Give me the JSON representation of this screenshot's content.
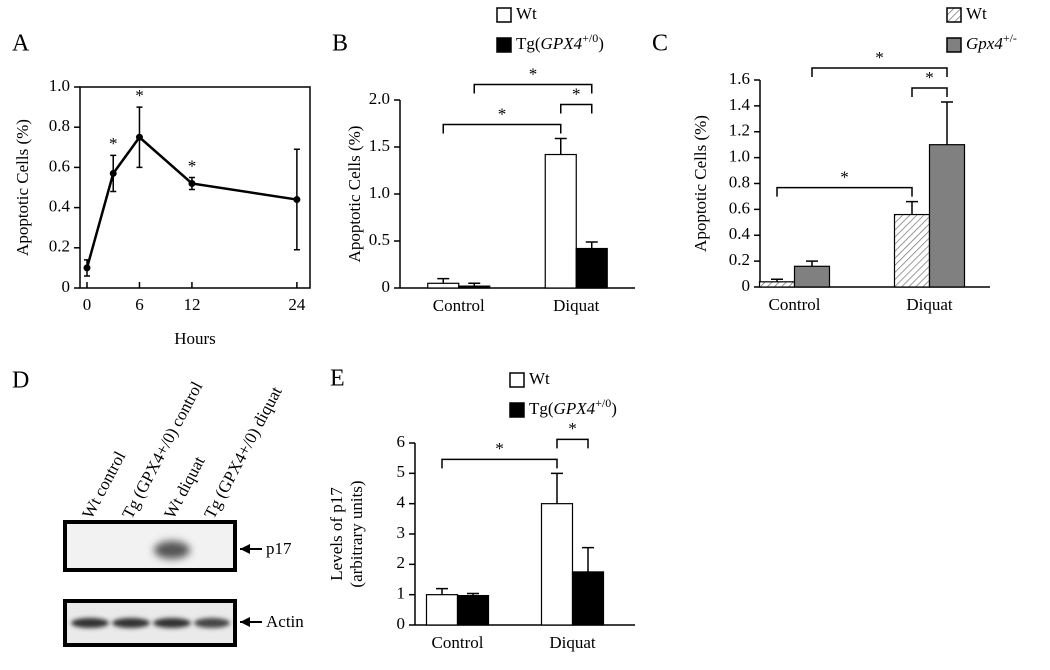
{
  "chart_data": [
    {
      "panel": "A",
      "type": "line",
      "y_label": [
        "Apoptotic Cells (%)"
      ],
      "x_label": "Hours",
      "x": [
        0,
        3,
        6,
        12,
        24
      ],
      "series": [
        {
          "color": "#000000",
          "values": [
            0.1,
            0.57,
            0.75,
            0.52,
            0.44
          ],
          "errors": [
            0.04,
            0.09,
            0.15,
            0.03,
            0.25
          ]
        }
      ],
      "annotations": [
        {
          "text": "*",
          "x": 3
        },
        {
          "text": "*",
          "x": 6
        },
        {
          "text": "*",
          "x": 12
        }
      ],
      "xlim": [
        -0.8,
        25.5
      ],
      "xticks": [
        0,
        6,
        12,
        24
      ],
      "ylim": [
        0,
        1
      ],
      "yticks": [
        0,
        0.2,
        0.4,
        0.6,
        0.8,
        {
          "value": 1,
          "label": "1.0"
        }
      ],
      "frame": "box"
    },
    {
      "panel": "B",
      "type": "bar",
      "y_label": [
        "Apoptotic Cells (%)"
      ],
      "categories": [
        "Control",
        "Diquat"
      ],
      "series": [
        {
          "name_parts": [
            {
              "text": "Wt"
            }
          ],
          "color": "#ffffff",
          "values": [
            0.05,
            1.42
          ],
          "errors": [
            0.05,
            0.17
          ]
        },
        {
          "name_parts": [
            {
              "text": "Tg("
            },
            {
              "text": "GPX4",
              "style": "italic"
            },
            {
              "text": "+/0",
              "style": "sup"
            },
            {
              "text": ")"
            }
          ],
          "color": "#000000",
          "values": [
            0.02,
            0.42
          ],
          "errors": [
            0.03,
            0.07
          ]
        }
      ],
      "significance": [
        {
          "text": "*",
          "from": [
            0,
            0
          ],
          "to": [
            0,
            1
          ]
        },
        {
          "text": "*",
          "from": [
            0,
            1
          ],
          "to": [
            1,
            1
          ]
        },
        {
          "text": "*",
          "from": [
            1,
            0
          ],
          "to": [
            1,
            1
          ]
        }
      ],
      "ylim": [
        0,
        2
      ],
      "yticks": [
        0,
        0.5,
        {
          "value": 1,
          "label": "1.0"
        },
        1.5,
        {
          "value": 2,
          "label": "2.0"
        }
      ],
      "frame": "axes"
    },
    {
      "panel": "C",
      "type": "bar",
      "y_label": [
        "Apoptotic Cells (%)"
      ],
      "categories": [
        "Control",
        "Diquat"
      ],
      "series": [
        {
          "name_parts": [
            {
              "text": "Wt"
            }
          ],
          "color": "#ffffff",
          "hatch": true,
          "values": [
            0.04,
            0.56
          ],
          "errors": [
            0.02,
            0.1
          ]
        },
        {
          "name_parts": [
            {
              "text": "Gpx4",
              "style": "italic"
            },
            {
              "text": "+/-",
              "style": "sup"
            }
          ],
          "color": "#808080",
          "values": [
            0.16,
            1.1
          ],
          "errors": [
            0.04,
            0.33
          ]
        }
      ],
      "significance": [
        {
          "text": "*",
          "from": [
            0,
            0
          ],
          "to": [
            0,
            1
          ]
        },
        {
          "text": "*",
          "from": [
            0,
            1
          ],
          "to": [
            1,
            1
          ]
        },
        {
          "text": "*",
          "from": [
            1,
            0
          ],
          "to": [
            1,
            1
          ]
        }
      ],
      "ylim": [
        0,
        1.6
      ],
      "yticks": [
        0,
        0.2,
        0.4,
        0.6,
        0.8,
        {
          "value": 1,
          "label": "1.0"
        },
        1.2,
        1.4,
        1.6
      ],
      "frame": "axes"
    },
    {
      "panel": "E",
      "type": "bar",
      "y_label": [
        "Levels of p17",
        "(arbitrary units)"
      ],
      "categories": [
        "Control",
        "Diquat"
      ],
      "series": [
        {
          "name_parts": [
            {
              "text": "Wt"
            }
          ],
          "color": "#ffffff",
          "values": [
            1.0,
            4.0
          ],
          "errors": [
            0.2,
            1.0
          ]
        },
        {
          "name_parts": [
            {
              "text": "Tg("
            },
            {
              "text": "GPX4",
              "style": "italic"
            },
            {
              "text": "+/0",
              "style": "sup"
            },
            {
              "text": ")"
            }
          ],
          "color": "#000000",
          "values": [
            0.97,
            1.75
          ],
          "errors": [
            0.07,
            0.8
          ]
        }
      ],
      "significance": [
        {
          "text": "*",
          "from": [
            0,
            0
          ],
          "to": [
            0,
            1
          ]
        },
        {
          "text": "*",
          "from": [
            0,
            1
          ],
          "to": [
            1,
            1
          ]
        }
      ],
      "ylim": [
        0,
        6
      ],
      "yticks": [
        0,
        1,
        2,
        3,
        4,
        5,
        6
      ],
      "frame": "axes"
    }
  ],
  "blot": {
    "panel": "D",
    "lanes": [
      "Wt control",
      "Tg (GPX4+/0) control",
      "Wt diquat",
      "Tg (GPX4+/0) diquat"
    ],
    "bands": [
      "p17",
      "Actin"
    ]
  }
}
